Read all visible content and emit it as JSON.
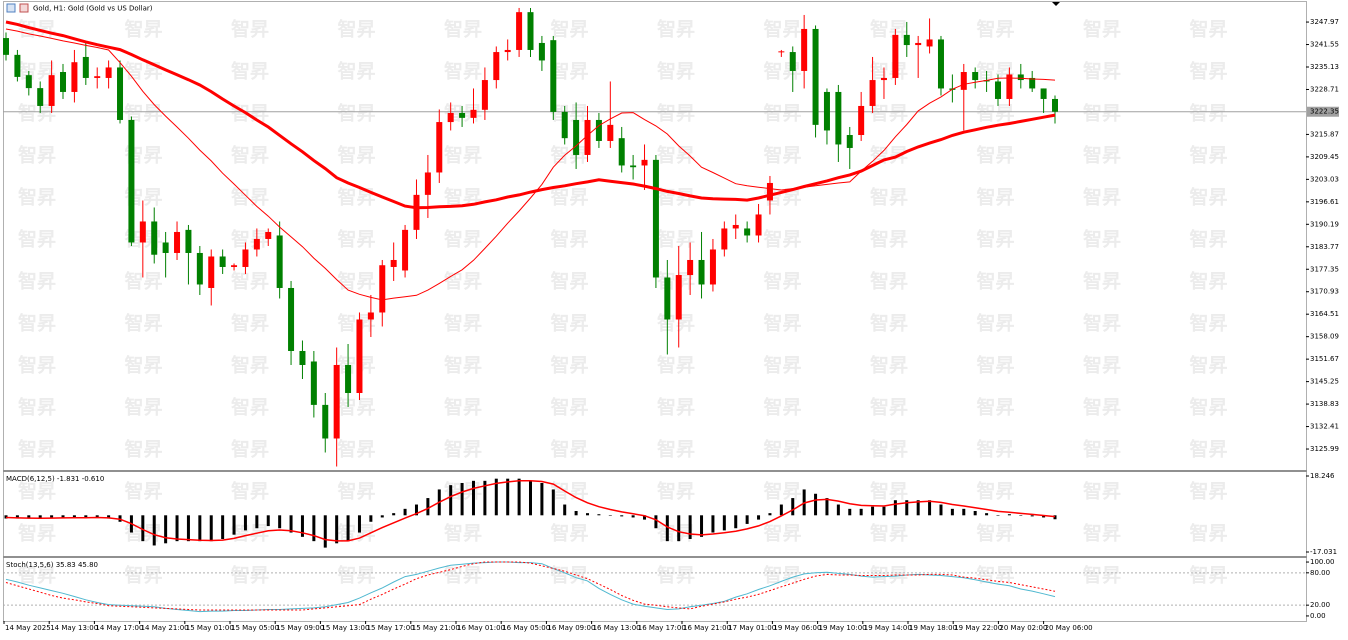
{
  "chart_data": [
    {
      "type": "candlestick",
      "title": "Gold, H1: Gold (Gold vs US Dollar)",
      "watermark": "智昇",
      "up_color": "#ff0000",
      "down_color": "#008000",
      "ylim": [
        3120.0,
        3253.7
      ],
      "yticks": [
        3247.97,
        3241.55,
        3235.13,
        3228.71,
        3215.87,
        3209.45,
        3203.03,
        3196.61,
        3190.19,
        3183.77,
        3177.35,
        3170.93,
        3164.51,
        3158.09,
        3151.67,
        3145.25,
        3138.83,
        3132.41,
        3125.99
      ],
      "last_price": 3222.35,
      "x_labels": [
        "14 May 2025",
        "14 May 13:00",
        "14 May 17:00",
        "14 May 21:00",
        "15 May 01:00",
        "15 May 05:00",
        "15 May 09:00",
        "15 May 13:00",
        "15 May 17:00",
        "15 May 21:00",
        "16 May 01:00",
        "16 May 05:00",
        "16 May 09:00",
        "16 May 13:00",
        "16 May 17:00",
        "16 May 21:00",
        "17 May 01:00",
        "19 May 06:00",
        "19 May 10:00",
        "19 May 14:00",
        "19 May 18:00",
        "19 May 22:00",
        "20 May 02:00",
        "20 May 06:00"
      ],
      "open": [
        3243.4,
        3238.6,
        3232.8,
        3229.1,
        3224,
        3233.7,
        3228,
        3238,
        3232,
        3232,
        3235,
        3220,
        3185,
        3191,
        3185,
        3182,
        3188.6,
        3182,
        3172,
        3181,
        3178,
        3178,
        3183,
        3186,
        3187,
        3172,
        3154,
        3151,
        3138.6,
        3129,
        3150,
        3142,
        3163,
        3165,
        3178,
        3177,
        3188.6,
        3198.6,
        3205,
        3219.4,
        3222,
        3220.6,
        3222.9,
        3231.4,
        3239.4,
        3240,
        3250.8,
        3242,
        3242.8,
        3222.3,
        3220,
        3210,
        3220,
        3214,
        3214.8,
        3207,
        3207,
        3208.6,
        3175,
        3163,
        3175.7,
        3180,
        3173,
        3183,
        3189,
        3189,
        3187,
        3197,
        3239.4,
        3239.4,
        3234,
        3246,
        3228,
        3228,
        3215.7,
        3215.7,
        3224,
        3231.4,
        3232,
        3244.3,
        3241.4,
        3241,
        3243,
        3229,
        3228.6,
        3233.7,
        3231.4,
        3231,
        3226,
        3233,
        3232,
        3229,
        3226
      ],
      "high": [
        3245,
        3240,
        3234,
        3231,
        3237,
        3236,
        3240,
        3242,
        3235,
        3237,
        3237,
        3221,
        3197,
        3195,
        3188,
        3191,
        3190,
        3184,
        3183,
        3183,
        3179,
        3185,
        3189,
        3189,
        3191,
        3174,
        3157,
        3154,
        3142,
        3155,
        3156,
        3165,
        3170,
        3180,
        3185,
        3190,
        3203,
        3210,
        3223,
        3225,
        3224,
        3229,
        3235,
        3241,
        3243,
        3252,
        3252,
        3244,
        3244,
        3224,
        3225,
        3224,
        3222,
        3231,
        3218,
        3210,
        3213,
        3210,
        3180,
        3184,
        3185,
        3188,
        3186,
        3191,
        3193,
        3191,
        3196,
        3204,
        3240,
        3241,
        3250,
        3247,
        3229,
        3230,
        3218,
        3228,
        3238,
        3235,
        3246,
        3248,
        3244,
        3249,
        3244,
        3233,
        3236,
        3235,
        3234,
        3233,
        3235,
        3236,
        3234,
        3229,
        3227
      ],
      "low": [
        3237,
        3231,
        3227,
        3222,
        3222,
        3226,
        3225,
        3230,
        3229,
        3229,
        3219,
        3184,
        3175,
        3179,
        3175,
        3180,
        3173,
        3170,
        3167,
        3176,
        3177,
        3176,
        3181,
        3184,
        3169,
        3150,
        3146,
        3135,
        3125,
        3121,
        3138,
        3140,
        3158,
        3161,
        3174,
        3175,
        3186,
        3192,
        3202,
        3217,
        3218,
        3219,
        3220,
        3229,
        3237,
        3238,
        3238,
        3234,
        3220,
        3213,
        3206,
        3208,
        3212,
        3212,
        3205,
        3203,
        3200,
        3172,
        3153,
        3155,
        3170,
        3169,
        3171,
        3181,
        3186,
        3185,
        3185,
        3193,
        3238,
        3228,
        3229,
        3215,
        3213,
        3208,
        3206,
        3214,
        3222,
        3226,
        3230,
        3238,
        3232,
        3239,
        3227,
        3225,
        3217,
        3229,
        3228,
        3224,
        3224,
        3229,
        3228,
        3222,
        3219
      ],
      "close": [
        3238.6,
        3232.3,
        3229.1,
        3224,
        3232.8,
        3228,
        3236.5,
        3232,
        3232.5,
        3235,
        3220,
        3185,
        3191,
        3181.5,
        3182,
        3188,
        3182,
        3173,
        3181,
        3178,
        3178.5,
        3183,
        3186,
        3188,
        3172,
        3154,
        3150,
        3138.6,
        3129,
        3150,
        3142,
        3163,
        3165,
        3178.5,
        3180,
        3188.6,
        3198.6,
        3205,
        3219.4,
        3222,
        3220.6,
        3222.9,
        3231.4,
        3239.4,
        3240,
        3250.8,
        3240,
        3237,
        3222.3,
        3214.8,
        3210,
        3220,
        3214,
        3218.6,
        3207,
        3206.5,
        3208.6,
        3175,
        3163,
        3175.7,
        3180,
        3173,
        3183,
        3189,
        3190,
        3187,
        3193,
        3202,
        3239.6,
        3234,
        3246,
        3218.6,
        3217,
        3213,
        3212,
        3224,
        3231.4,
        3232,
        3244.3,
        3241.4,
        3242,
        3243,
        3229,
        3228.6,
        3233.7,
        3231.4,
        3231,
        3226,
        3233,
        3231.4,
        3229,
        3226,
        3222.35
      ],
      "ma_lines": [
        {
          "color": "#ff0000",
          "values": [
            3248,
            3247.3,
            3246.4,
            3245.6,
            3244.8,
            3244.1,
            3243.2,
            3242.3,
            3241.5,
            3240.8,
            3240.1,
            3238.7,
            3237.2,
            3235.8,
            3234.3,
            3232.9,
            3231.5,
            3230,
            3228.1,
            3226,
            3224,
            3222.1,
            3220,
            3218,
            3215.6,
            3213.2,
            3210.9,
            3208.4,
            3206.1,
            3203.5,
            3202,
            3200.7,
            3199.3,
            3198,
            3196.7,
            3195.4,
            3194.9,
            3195,
            3195.2,
            3195.3,
            3195.5,
            3195.9,
            3196.6,
            3197.2,
            3198,
            3198.6,
            3199.4,
            3200.1,
            3200.7,
            3201.2,
            3201.8,
            3202.3,
            3202.9,
            3202.5,
            3202.1,
            3201.7,
            3201.1,
            3200.4,
            3199.6,
            3199,
            3198.3,
            3197.7,
            3197.5,
            3197.4,
            3197.3,
            3197.1,
            3197.7,
            3198.5,
            3199.3,
            3200.1,
            3201,
            3201.8,
            3202.6,
            3203.5,
            3204.3,
            3205.4,
            3207,
            3208.6,
            3209.4,
            3211,
            3212.3,
            3213.4,
            3214.4,
            3215.6,
            3216.5,
            3217.2,
            3217.9,
            3218.5,
            3219,
            3219.6,
            3220.2,
            3220.8,
            3221.4
          ]
        },
        {
          "color": "#ff0000",
          "values": [
            3246,
            3245.4,
            3244.6,
            3244,
            3243.3,
            3242.6,
            3242,
            3241.3,
            3240.7,
            3240,
            3236.4,
            3232.5,
            3228.2,
            3224.4,
            3221.1,
            3218,
            3214.8,
            3211.4,
            3208.3,
            3204.8,
            3201.7,
            3198.5,
            3195.3,
            3192.5,
            3189.4,
            3186.6,
            3183.8,
            3180.5,
            3177.6,
            3174.4,
            3171.4,
            3170.2,
            3169.3,
            3168.6,
            3169.1,
            3169.5,
            3169.9,
            3171.4,
            3173.3,
            3175.3,
            3177.2,
            3179.9,
            3183.3,
            3186.8,
            3190.5,
            3194,
            3197.7,
            3201.6,
            3206.5,
            3209.9,
            3212.6,
            3215.6,
            3218.4,
            3220.3,
            3222,
            3222.1,
            3220.1,
            3218.3,
            3216,
            3212.6,
            3209.7,
            3206.5,
            3205,
            3203.4,
            3201.8,
            3201.2,
            3200.8,
            3200.4,
            3200,
            3200.4,
            3200.8,
            3201.2,
            3201.6,
            3202,
            3202.3,
            3205.4,
            3208.2,
            3211.3,
            3215.2,
            3218.7,
            3222.6,
            3224.8,
            3226.6,
            3228.8,
            3230.2,
            3230.8,
            3231.3,
            3231.9,
            3232,
            3231.9,
            3231.7,
            3231.6,
            3231.4
          ]
        }
      ]
    },
    {
      "type": "macd",
      "title": "MACD(6,12,5) -1.831 -0.610",
      "color": "#000000",
      "signal_color": "#ff0000",
      "ylim": [
        -18.89,
        20.1
      ],
      "yticks": [
        18.246,
        -17.031
      ],
      "histogram": [
        -1.5,
        -1.5,
        -1.5,
        -1.5,
        -1,
        -1,
        -1,
        -1,
        -1,
        -1.5,
        -3,
        -8,
        -12,
        -14,
        -13,
        -12,
        -12,
        -12,
        -12,
        -11,
        -9,
        -7,
        -6,
        -5,
        -6,
        -8,
        -10,
        -12,
        -15,
        -13,
        -12,
        -8,
        -3,
        -1,
        1,
        3,
        5,
        8,
        12,
        14,
        15,
        16,
        16,
        17,
        17,
        17,
        16,
        15,
        12,
        5,
        2,
        1,
        0.5,
        0,
        -0.5,
        -1,
        -2,
        -6,
        -12,
        -12,
        -11,
        -10,
        -8,
        -7,
        -6,
        -4,
        -2,
        1,
        5,
        8,
        12,
        10,
        8,
        5,
        3,
        3,
        4,
        4,
        7,
        7,
        7,
        7,
        5,
        3,
        3,
        2,
        1,
        0,
        0.5,
        0,
        -0.5,
        -1,
        -1.831
      ],
      "signal": [
        -1,
        -1.2,
        -1.3,
        -1.4,
        -1.3,
        -1.2,
        -1.1,
        -1.1,
        -1,
        -1.2,
        -1.8,
        -3.9,
        -6.6,
        -9,
        -10.4,
        -11,
        -11.3,
        -11.6,
        -11.7,
        -11.5,
        -10.7,
        -9.4,
        -8.3,
        -7.2,
        -6.8,
        -7.2,
        -8.1,
        -9.4,
        -11.3,
        -11.9,
        -11.9,
        -10.6,
        -8.1,
        -5.7,
        -3.5,
        -1.3,
        0.8,
        3.2,
        6.1,
        8.7,
        10.8,
        12.5,
        13.7,
        14.8,
        15.5,
        16,
        16,
        15.7,
        14.5,
        11.3,
        8.2,
        5.8,
        4,
        2.7,
        1.6,
        0.7,
        -0.2,
        -2.1,
        -5.4,
        -7.6,
        -8.7,
        -9.1,
        -8.7,
        -8.1,
        -7.4,
        -6.3,
        -4.9,
        -2.9,
        -0.3,
        2.5,
        5.7,
        7.1,
        7.4,
        6.6,
        5.4,
        4.6,
        4.4,
        4.3,
        5.2,
        5.8,
        6.2,
        6.5,
        6,
        5,
        4.3,
        3.5,
        2.7,
        1.8,
        1.4,
        0.9,
        0.4,
        -0.1,
        -0.61
      ]
    },
    {
      "type": "stoch",
      "title": "Stoch(13,5,6) 35.83 45.80",
      "main_color": "#4fb8d0",
      "signal_color": "#ff0000",
      "ylim": [
        -9.4,
        107.5
      ],
      "yticks": [
        {
          "value": 100,
          "label": "100.00"
        },
        {
          "value": 80,
          "label": "80.00"
        },
        {
          "value": 20,
          "label": "20.00"
        },
        {
          "value": 0,
          "label": "0.00"
        }
      ],
      "levels": [
        80,
        20
      ],
      "main": [
        68,
        63,
        57,
        52,
        47,
        42,
        36,
        30,
        25,
        21,
        20,
        19,
        18,
        17,
        14,
        12,
        10,
        8,
        9,
        9,
        10,
        10,
        11,
        12,
        12,
        13,
        14,
        15,
        17,
        21,
        25,
        33,
        43,
        52,
        63,
        73,
        77,
        83,
        89,
        94,
        96,
        98,
        99,
        100,
        100,
        99,
        99,
        97,
        88,
        80,
        71,
        65,
        51,
        40,
        30,
        22,
        18,
        15,
        12,
        13,
        17,
        20,
        23,
        27,
        35,
        41,
        49,
        56,
        64,
        72,
        78,
        80,
        81,
        79,
        77,
        74,
        72,
        73,
        74,
        76,
        77,
        76,
        75,
        73,
        71,
        67,
        63,
        59,
        56,
        50,
        46,
        41,
        35.83
      ],
      "signal": [
        62,
        56,
        50,
        44,
        38,
        33,
        30,
        26,
        23,
        19,
        18,
        17,
        16,
        15,
        14,
        13,
        12,
        11,
        11,
        11,
        11,
        11,
        11,
        11,
        11,
        11,
        11,
        13,
        15,
        17,
        19,
        21,
        31,
        40,
        50,
        59,
        69,
        76,
        81,
        86,
        92,
        97,
        100,
        100,
        100,
        100,
        98,
        93,
        88,
        83,
        76,
        69,
        59,
        49,
        38,
        29,
        22,
        20,
        17,
        15,
        13,
        18,
        22,
        26,
        31,
        35,
        40,
        47,
        54,
        61,
        68,
        74,
        77,
        76,
        76,
        75,
        75,
        75,
        76,
        76,
        76,
        77,
        77,
        76,
        72,
        70,
        67,
        64,
        62,
        58,
        54,
        50,
        45.8
      ]
    }
  ]
}
